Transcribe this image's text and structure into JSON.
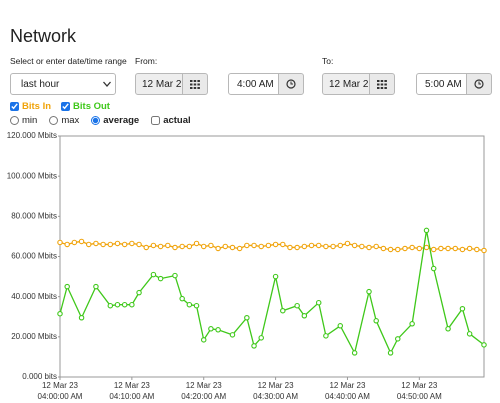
{
  "page": {
    "title": "Network",
    "range_label": "Select or enter date/time range",
    "preset": "last hour",
    "from": {
      "label": "From:",
      "date": "12 Mar 2",
      "time": "4:00 AM"
    },
    "to": {
      "label": "To:",
      "date": "12 Mar 2",
      "time": "5:00 AM"
    },
    "modes": [
      {
        "label": "min",
        "selected": false
      },
      {
        "label": "max",
        "selected": false
      },
      {
        "label": "average",
        "selected": true
      }
    ],
    "actual": {
      "label": "actual",
      "checked": false
    }
  },
  "chart_data": {
    "type": "line",
    "series": [
      {
        "name": "Bits In",
        "color": "#f0a30a",
        "checked": true,
        "x": [
          0,
          1,
          2,
          3,
          4,
          5,
          6,
          7,
          8,
          9,
          10,
          11,
          12,
          13,
          14,
          15,
          16,
          17,
          18,
          19,
          20,
          21,
          22,
          23,
          24,
          25,
          26,
          27,
          28,
          29,
          30,
          31,
          32,
          33,
          34,
          35,
          36,
          37,
          38,
          39,
          40,
          41,
          42,
          43,
          44,
          45,
          46,
          47,
          48,
          49,
          50,
          51,
          52,
          53,
          54,
          55,
          56,
          57,
          58,
          59
        ],
        "values": [
          67,
          66,
          67,
          67.5,
          66,
          66.5,
          66,
          66,
          66.5,
          66,
          66.5,
          66,
          64.5,
          65.5,
          65,
          65.5,
          64.5,
          65,
          65,
          66.5,
          65,
          65.5,
          64,
          65,
          64.5,
          64,
          65.5,
          65.5,
          65,
          65.5,
          66,
          66,
          64.5,
          64.5,
          65,
          65.5,
          65.5,
          65,
          65,
          65.5,
          66.5,
          65.5,
          65,
          64.5,
          65,
          64,
          63.5,
          63.5,
          64,
          64.5,
          64,
          64.5,
          63.5,
          64,
          64,
          64,
          63.5,
          64,
          63.5,
          63
        ]
      },
      {
        "name": "Bits Out",
        "color": "#3fc81a",
        "checked": true,
        "x": [
          0,
          1,
          3,
          5,
          7,
          8,
          9,
          10,
          11,
          13,
          14,
          16,
          17,
          18,
          19,
          20,
          21,
          22,
          24,
          26,
          27,
          28,
          30,
          31,
          33,
          34,
          36,
          37,
          39,
          41,
          43,
          44,
          46,
          47,
          49,
          51,
          52,
          54,
          56,
          57,
          59
        ],
        "values": [
          31.5,
          45,
          29.5,
          45,
          35.5,
          36,
          36,
          36,
          42,
          51,
          49,
          50.5,
          39,
          36,
          35.5,
          18.5,
          24,
          23.5,
          21,
          29.5,
          15.5,
          19.5,
          50,
          33,
          35.5,
          30.5,
          37,
          20.5,
          25.5,
          12,
          42.5,
          28,
          12,
          19,
          26.5,
          73,
          54,
          24,
          34,
          21.5,
          16
        ]
      }
    ],
    "xlim": [
      0,
      59
    ],
    "xticks": [
      {
        "value": 0,
        "label": "04:00:00 AM",
        "date": "12 Mar 23"
      },
      {
        "value": 10,
        "label": "04:10:00 AM",
        "date": "12 Mar 23"
      },
      {
        "value": 20,
        "label": "04:20:00 AM",
        "date": "12 Mar 23"
      },
      {
        "value": 30,
        "label": "04:30:00 AM",
        "date": "12 Mar 23"
      },
      {
        "value": 40,
        "label": "04:40:00 AM",
        "date": "12 Mar 23"
      },
      {
        "value": 50,
        "label": "04:50:00 AM",
        "date": "12 Mar 23"
      }
    ],
    "ylim": [
      0,
      120
    ],
    "yticks": [
      {
        "value": 0,
        "label": "0.000 bits"
      },
      {
        "value": 20,
        "label": "20.000 Mbits"
      },
      {
        "value": 40,
        "label": "40.000 Mbits"
      },
      {
        "value": 60,
        "label": "60.000 Mbits"
      },
      {
        "value": 80,
        "label": "80.000 Mbits"
      },
      {
        "value": 100,
        "label": "100.000 Mbits"
      },
      {
        "value": 120,
        "label": "120.000 Mbits"
      }
    ],
    "grid": false,
    "markers": true
  }
}
